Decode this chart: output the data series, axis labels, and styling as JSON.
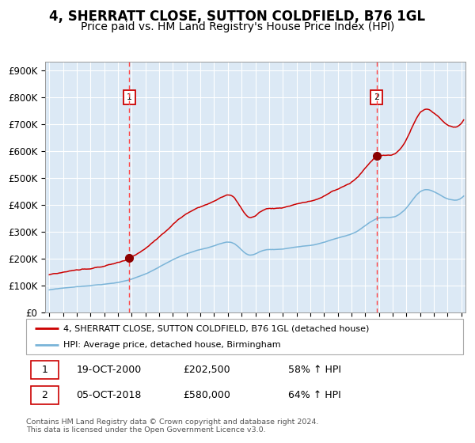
{
  "title": "4, SHERRATT CLOSE, SUTTON COLDFIELD, B76 1GL",
  "subtitle": "Price paid vs. HM Land Registry's House Price Index (HPI)",
  "title_fontsize": 12,
  "subtitle_fontsize": 10,
  "bg_color": "#dce9f5",
  "line1_color": "#cc0000",
  "line2_color": "#7ab4d8",
  "marker_color": "#8b0000",
  "dashed_color": "#ff4444",
  "sale1_year": 2001.0,
  "sale1_price": 202500,
  "sale2_year": 2019.0,
  "sale2_price": 580000,
  "ylabel_items": [
    "£0",
    "£100K",
    "£200K",
    "£300K",
    "£400K",
    "£500K",
    "£600K",
    "£700K",
    "£800K",
    "£900K"
  ],
  "ylim": [
    0,
    930000
  ],
  "xlim": [
    1994.7,
    2025.3
  ],
  "legend1_label": "4, SHERRATT CLOSE, SUTTON COLDFIELD, B76 1GL (detached house)",
  "legend2_label": "HPI: Average price, detached house, Birmingham",
  "table_row1": [
    "1",
    "19-OCT-2000",
    "£202,500",
    "58% ↑ HPI"
  ],
  "table_row2": [
    "2",
    "05-OCT-2018",
    "£580,000",
    "64% ↑ HPI"
  ],
  "footer": "Contains HM Land Registry data © Crown copyright and database right 2024.\nThis data is licensed under the Open Government Licence v3.0."
}
